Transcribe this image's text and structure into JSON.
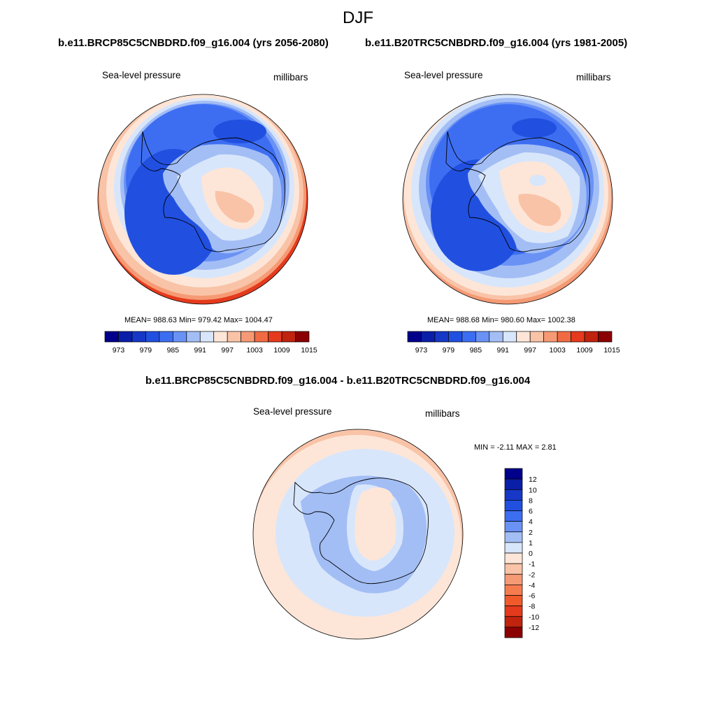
{
  "page": {
    "title": "DJF"
  },
  "panels": [
    {
      "subtitle": "b.e11.BRCP85C5CNBDRD.f09_g16.004 (yrs 2056-2080)",
      "left_label": "Sea-level pressure",
      "right_label": "millibars",
      "stats": "MEAN= 988.63  Min= 979.42  Max= 1004.47"
    },
    {
      "subtitle": "b.e11.B20TRC5CNBDRD.f09_g16.004 (yrs 1981-2005)",
      "left_label": "Sea-level pressure",
      "right_label": "millibars",
      "stats": "MEAN= 988.68  Min= 980.60  Max= 1002.38"
    },
    {
      "subtitle": "b.e11.BRCP85C5CNBDRD.f09_g16.004 - b.e11.B20TRC5CNBDRD.f09_g16.004",
      "left_label": "Sea-level pressure",
      "right_label": "millibars",
      "stats": "MIN =  -2.11 MAX =   2.81"
    }
  ],
  "colorbar_main": {
    "colors": [
      "#00008b",
      "#0a1fa8",
      "#1738c6",
      "#2150e0",
      "#3d6ef2",
      "#6a92f5",
      "#a3bef5",
      "#d8e6fb",
      "#fde6d8",
      "#f9c3a7",
      "#f59a74",
      "#f06b43",
      "#e53a1d",
      "#c0230e",
      "#8b0000"
    ],
    "labels": [
      "973",
      "979",
      "985",
      "991",
      "997",
      "1003",
      "1009",
      "1015"
    ]
  },
  "colorbar_diff": {
    "colors": [
      "#00008b",
      "#0a1fa8",
      "#1738c6",
      "#2150e0",
      "#3d6ef2",
      "#6a92f5",
      "#a3bef5",
      "#d8e6fb",
      "#fde6d8",
      "#f9c3a7",
      "#f59a74",
      "#f57c4f",
      "#f05a2a",
      "#e53a1d",
      "#c0230e",
      "#8b0000"
    ],
    "labels": [
      "12",
      "10",
      "8",
      "6",
      "4",
      "2",
      "1",
      "0",
      "-1",
      "-2",
      "-4",
      "-6",
      "-8",
      "-10",
      "-12"
    ]
  }
}
